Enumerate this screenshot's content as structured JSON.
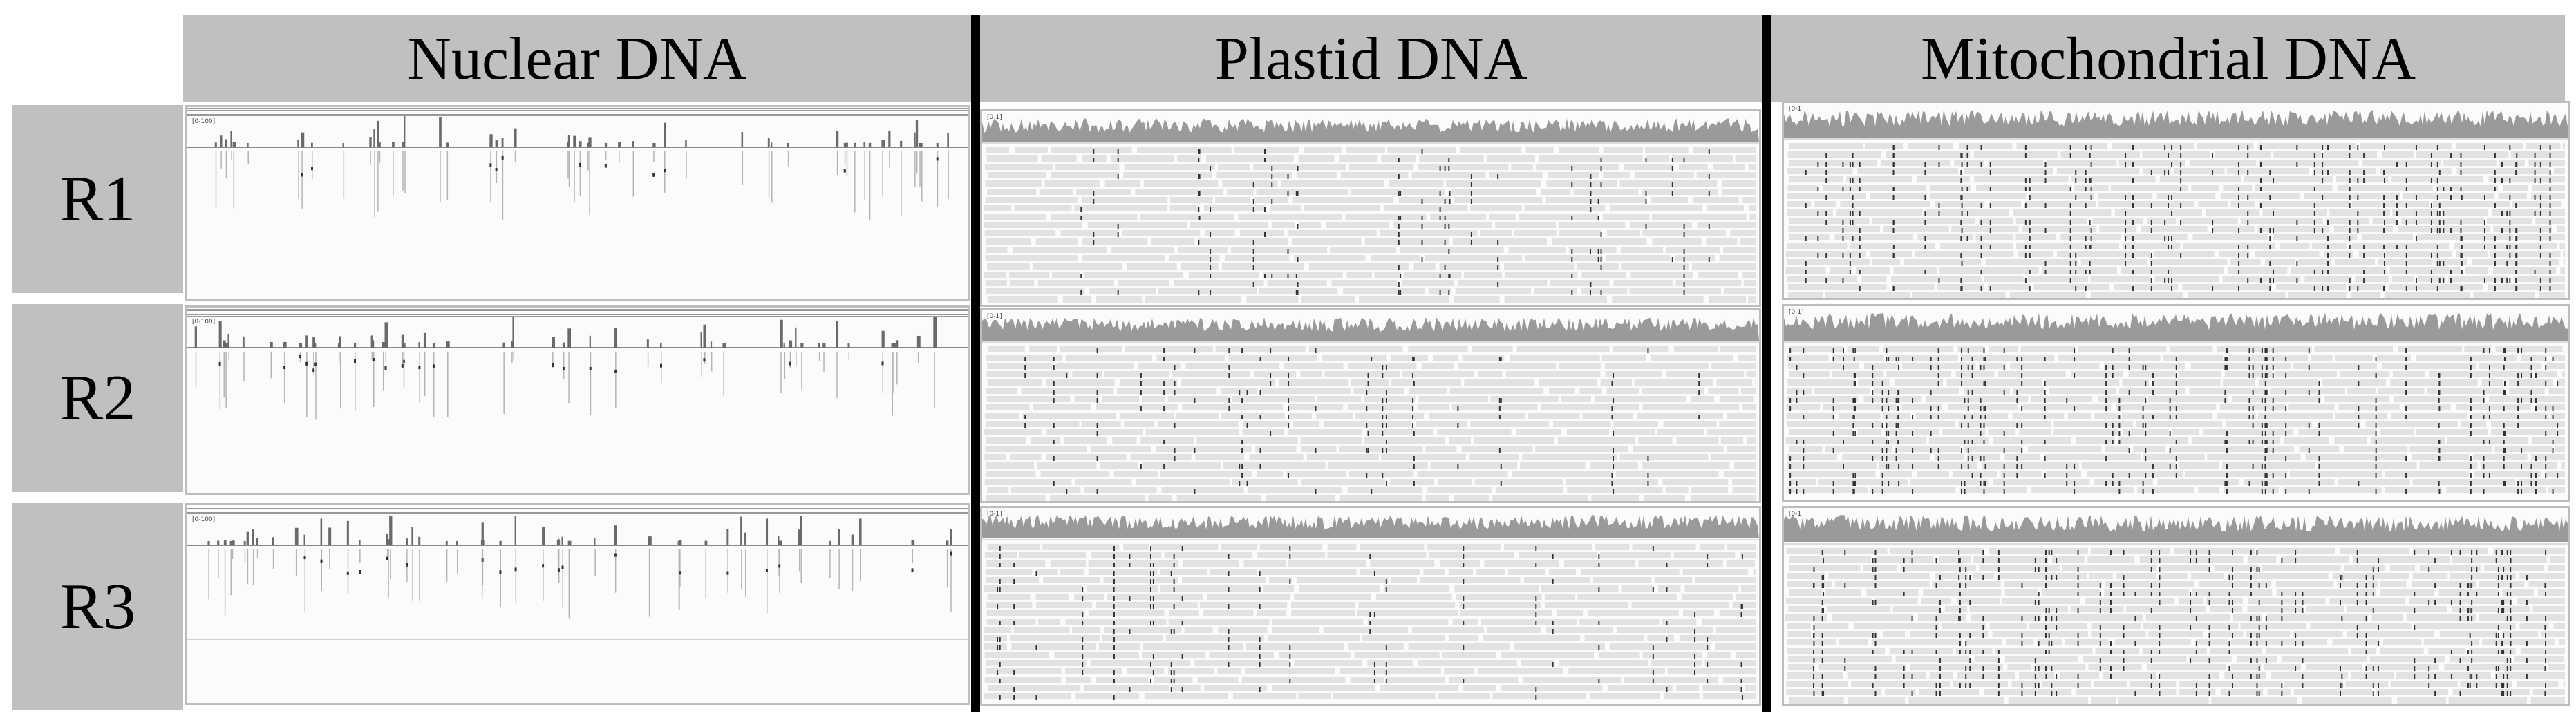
{
  "columns": [
    {
      "key": "nuclear",
      "label": "Nuclear DNA"
    },
    {
      "key": "plastid",
      "label": "Plastid DNA"
    },
    {
      "key": "mito",
      "label": "Mitochondrial DNA"
    }
  ],
  "rows": [
    {
      "label": "R1"
    },
    {
      "label": "R2"
    },
    {
      "label": "R3"
    }
  ],
  "panels": {
    "nuclear": {
      "scale_label": "[0-100]"
    },
    "plastid": {
      "scale_label": "[0-1]"
    },
    "mito": {
      "scale_label": "[0-1]"
    }
  },
  "colors": {
    "header_bg": "#c0c0c0",
    "coverage_fill": "#9a9a9a",
    "read_fill": "#e2e2e2",
    "mismatch": "#222222",
    "divider": "#000000"
  }
}
